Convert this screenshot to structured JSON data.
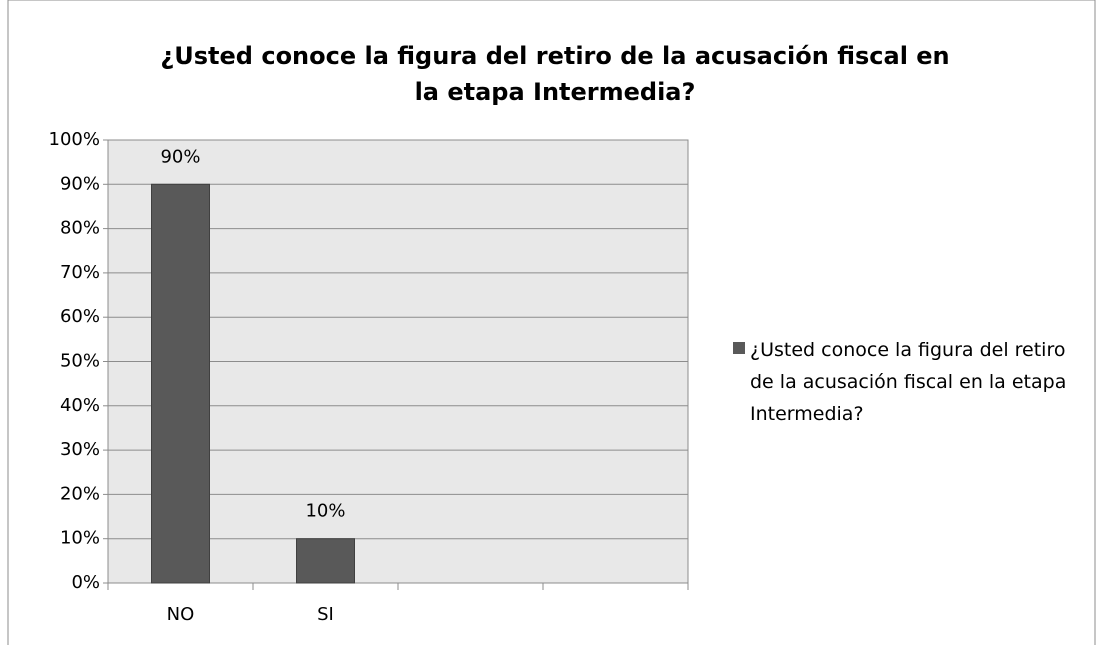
{
  "chart_data": {
    "type": "bar",
    "title": "¿Usted conoce la figura del retiro de la acusación fiscal en la etapa Intermedia?",
    "categories": [
      "NO",
      "SI",
      null,
      null
    ],
    "series": [
      {
        "name": "¿Usted conoce la figura del retiro de la acusación fiscal en la etapa Intermedia?",
        "color": "#595959",
        "values": [
          90,
          10,
          null,
          null
        ],
        "value_labels": [
          "90%",
          "10%",
          null,
          null
        ]
      }
    ],
    "ylim": [
      0,
      100
    ],
    "yticks": [
      {
        "value": 0,
        "label": "0%"
      },
      {
        "value": 10,
        "label": "10%"
      },
      {
        "value": 20,
        "label": "20%"
      },
      {
        "value": 30,
        "label": "30%"
      },
      {
        "value": 40,
        "label": "40%"
      },
      {
        "value": 50,
        "label": "50%"
      },
      {
        "value": 60,
        "label": "60%"
      },
      {
        "value": 70,
        "label": "70%"
      },
      {
        "value": 80,
        "label": "80%"
      },
      {
        "value": 90,
        "label": "90%"
      },
      {
        "value": 100,
        "label": "100%"
      }
    ],
    "grid": true,
    "legend": "right"
  }
}
